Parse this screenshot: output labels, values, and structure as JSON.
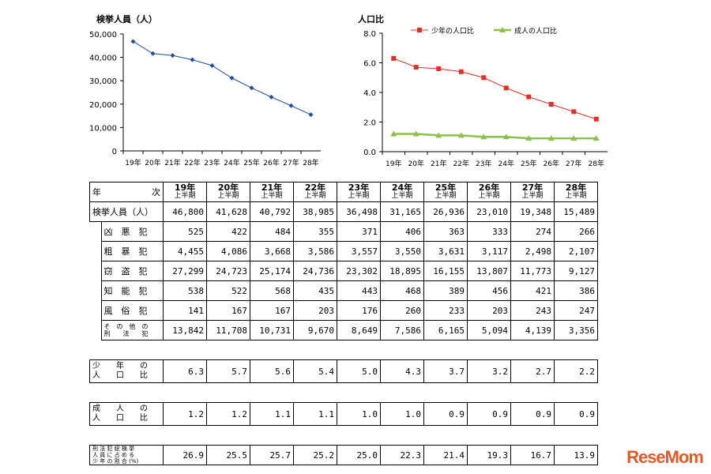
{
  "chart_data": [
    {
      "type": "line",
      "title": "検挙人員（人）",
      "categories": [
        "19年",
        "20年",
        "21年",
        "22年",
        "23年",
        "24年",
        "25年",
        "26年",
        "27年",
        "28年"
      ],
      "series": [
        {
          "name": "検挙人員",
          "values": [
            46800,
            41628,
            40792,
            38985,
            36498,
            31165,
            26936,
            23010,
            19348,
            15489
          ],
          "color": "#1f4e9a"
        }
      ],
      "ylim": [
        0,
        50000
      ],
      "yticks": [
        "50,000",
        "40,000",
        "30,000",
        "20,000",
        "10,000",
        "0"
      ]
    },
    {
      "type": "line",
      "title": "人口比",
      "categories": [
        "19年",
        "20年",
        "21年",
        "22年",
        "23年",
        "24年",
        "25年",
        "26年",
        "27年",
        "28年"
      ],
      "series": [
        {
          "name": "少年の人口比",
          "values": [
            6.3,
            5.7,
            5.6,
            5.4,
            5.0,
            4.3,
            3.7,
            3.2,
            2.7,
            2.2
          ],
          "color": "#e0302a"
        },
        {
          "name": "成人の人口比",
          "values": [
            1.2,
            1.2,
            1.1,
            1.1,
            1.0,
            1.0,
            0.9,
            0.9,
            0.9,
            0.9
          ],
          "color": "#8cc04a"
        }
      ],
      "ylim": [
        0,
        8
      ],
      "yticks": [
        "8.0",
        "6.0",
        "4.0",
        "2.0",
        "0.0"
      ],
      "legend": "top"
    }
  ],
  "table": {
    "corner_label_a": "年",
    "corner_label_b": "次",
    "period": "上半期",
    "years": [
      "19年",
      "20年",
      "21年",
      "22年",
      "23年",
      "24年",
      "25年",
      "26年",
      "27年",
      "28年"
    ],
    "rows": [
      {
        "label": "検挙人員（人）",
        "values": [
          "46,800",
          "41,628",
          "40,792",
          "38,985",
          "36,498",
          "31,165",
          "26,936",
          "23,010",
          "19,348",
          "15,489"
        ]
      },
      {
        "label": "凶　悪　犯",
        "values": [
          "525",
          "422",
          "484",
          "355",
          "371",
          "406",
          "363",
          "333",
          "274",
          "266"
        ]
      },
      {
        "label": "粗　暴　犯",
        "values": [
          "4,455",
          "4,086",
          "3,668",
          "3,586",
          "3,557",
          "3,550",
          "3,631",
          "3,117",
          "2,498",
          "2,107"
        ]
      },
      {
        "label": "窃　盗　犯",
        "values": [
          "27,299",
          "24,723",
          "25,174",
          "24,736",
          "23,302",
          "18,895",
          "16,155",
          "13,807",
          "11,773",
          "9,127"
        ]
      },
      {
        "label": "知　能　犯",
        "values": [
          "538",
          "522",
          "568",
          "435",
          "443",
          "468",
          "389",
          "456",
          "421",
          "386"
        ]
      },
      {
        "label": "風　俗　犯",
        "values": [
          "141",
          "167",
          "167",
          "203",
          "176",
          "260",
          "233",
          "203",
          "243",
          "247"
        ]
      },
      {
        "label_line1": "そ　の　他　の",
        "label_line2": "刑　　法　　犯",
        "values": [
          "13,842",
          "11,708",
          "10,731",
          "9,670",
          "8,649",
          "7,586",
          "6,165",
          "5,094",
          "4,139",
          "3,356"
        ]
      }
    ],
    "youth_ratio": {
      "label_line1": "少　　年　　の",
      "label_line2": "人　　口　　比",
      "values": [
        "6.3",
        "5.7",
        "5.6",
        "5.4",
        "5.0",
        "4.3",
        "3.7",
        "3.2",
        "2.7",
        "2.2"
      ]
    },
    "adult_ratio": {
      "label_line1": "成　　人　　の",
      "label_line2": "人　　口　　比",
      "values": [
        "1.2",
        "1.2",
        "1.1",
        "1.1",
        "1.0",
        "1.0",
        "0.9",
        "0.9",
        "0.9",
        "0.9"
      ]
    },
    "share": {
      "label_line1": "刑 法 犯 総 検 挙",
      "label_line2": "人 員 に 占 め る",
      "label_line3": "少 年 の 割 合 (%)",
      "values": [
        "26.9",
        "25.5",
        "25.7",
        "25.2",
        "25.0",
        "22.3",
        "21.4",
        "19.3",
        "16.7",
        "13.9"
      ]
    }
  },
  "watermark": {
    "part1": "Rese",
    "part2": "Mom"
  }
}
